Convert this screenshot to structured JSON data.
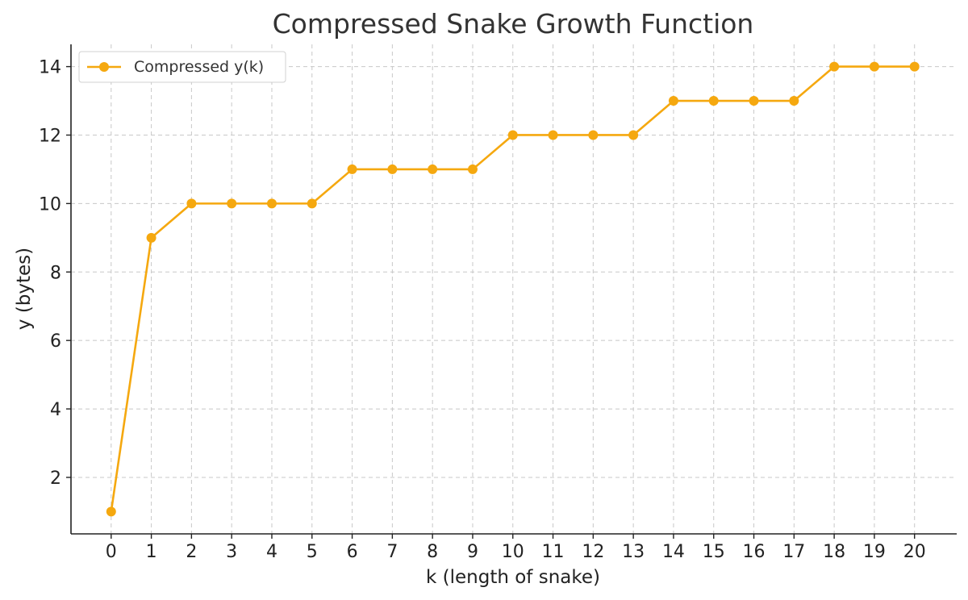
{
  "chart_data": {
    "type": "line",
    "title": "Compressed Snake Growth Function",
    "xlabel": "k (length of snake)",
    "ylabel": "y (bytes)",
    "x": [
      0,
      1,
      2,
      3,
      4,
      5,
      6,
      7,
      8,
      9,
      10,
      11,
      12,
      13,
      14,
      15,
      16,
      17,
      18,
      19,
      20
    ],
    "xticks": [
      0,
      1,
      2,
      3,
      4,
      5,
      6,
      7,
      8,
      9,
      10,
      11,
      12,
      13,
      14,
      15,
      16,
      17,
      18,
      19,
      20
    ],
    "yticks": [
      2,
      4,
      6,
      8,
      10,
      12,
      14
    ],
    "xlim": [
      -1,
      21.05
    ],
    "ylim": [
      0.35,
      14.65
    ],
    "grid": true,
    "legend_position": "top-left",
    "series": [
      {
        "name": "Compressed y(k)",
        "color": "#F5A80F",
        "marker": "circle",
        "values": [
          1,
          9,
          10,
          10,
          10,
          10,
          11,
          11,
          11,
          11,
          12,
          12,
          12,
          12,
          13,
          13,
          13,
          13,
          14,
          14,
          14
        ]
      }
    ]
  }
}
